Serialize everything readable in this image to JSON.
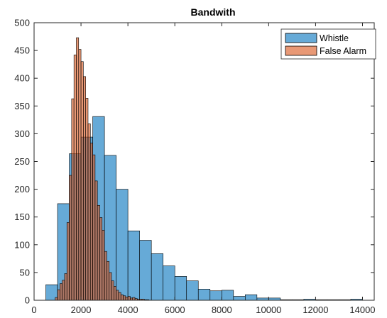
{
  "chart_data": {
    "type": "histogram",
    "title": "Bandwith",
    "xlabel": "",
    "ylabel": "",
    "xlim": [
      0,
      14500
    ],
    "ylim": [
      0,
      500
    ],
    "xticks": [
      0,
      2000,
      4000,
      6000,
      8000,
      10000,
      12000,
      14000
    ],
    "yticks": [
      0,
      50,
      100,
      150,
      200,
      250,
      300,
      350,
      400,
      450,
      500
    ],
    "grid": false,
    "legend_position": "top-right",
    "series": [
      {
        "name": "Whistle",
        "color": "#0072BD",
        "face_alpha": 0.6,
        "bin_edges": [
          500,
          1000,
          1500,
          2000,
          2500,
          3000,
          3500,
          4000,
          4500,
          5000,
          5500,
          6000,
          6500,
          7000,
          7500,
          8000,
          8500,
          9000,
          9500,
          10000,
          10500,
          11000,
          11500,
          12000,
          12500,
          13000,
          13500,
          14000
        ],
        "counts": [
          28,
          174,
          264,
          294,
          331,
          261,
          200,
          125,
          108,
          84,
          62,
          43,
          35,
          20,
          17,
          18,
          7,
          10,
          4,
          4,
          1,
          1,
          2,
          1,
          1,
          1,
          2
        ]
      },
      {
        "name": "False Alarm",
        "color": "#D95319",
        "face_alpha": 0.6,
        "bin_edges": [
          900,
          1000,
          1100,
          1200,
          1300,
          1400,
          1500,
          1600,
          1700,
          1800,
          1900,
          2000,
          2100,
          2200,
          2300,
          2400,
          2500,
          2600,
          2700,
          2800,
          2900,
          3000,
          3100,
          3200,
          3300,
          3400,
          3500,
          3600,
          3700,
          3800,
          3900,
          4000,
          4100,
          4200,
          4300,
          4400,
          4500,
          4600,
          4700,
          4800,
          4900
        ],
        "counts": [
          5,
          19,
          30,
          36,
          48,
          140,
          225,
          363,
          442,
          473,
          452,
          430,
          403,
          364,
          318,
          283,
          262,
          215,
          171,
          149,
          126,
          88,
          70,
          50,
          35,
          25,
          18,
          14,
          10,
          8,
          6,
          7,
          4,
          5,
          3,
          2,
          2,
          2,
          1,
          1
        ]
      }
    ]
  }
}
